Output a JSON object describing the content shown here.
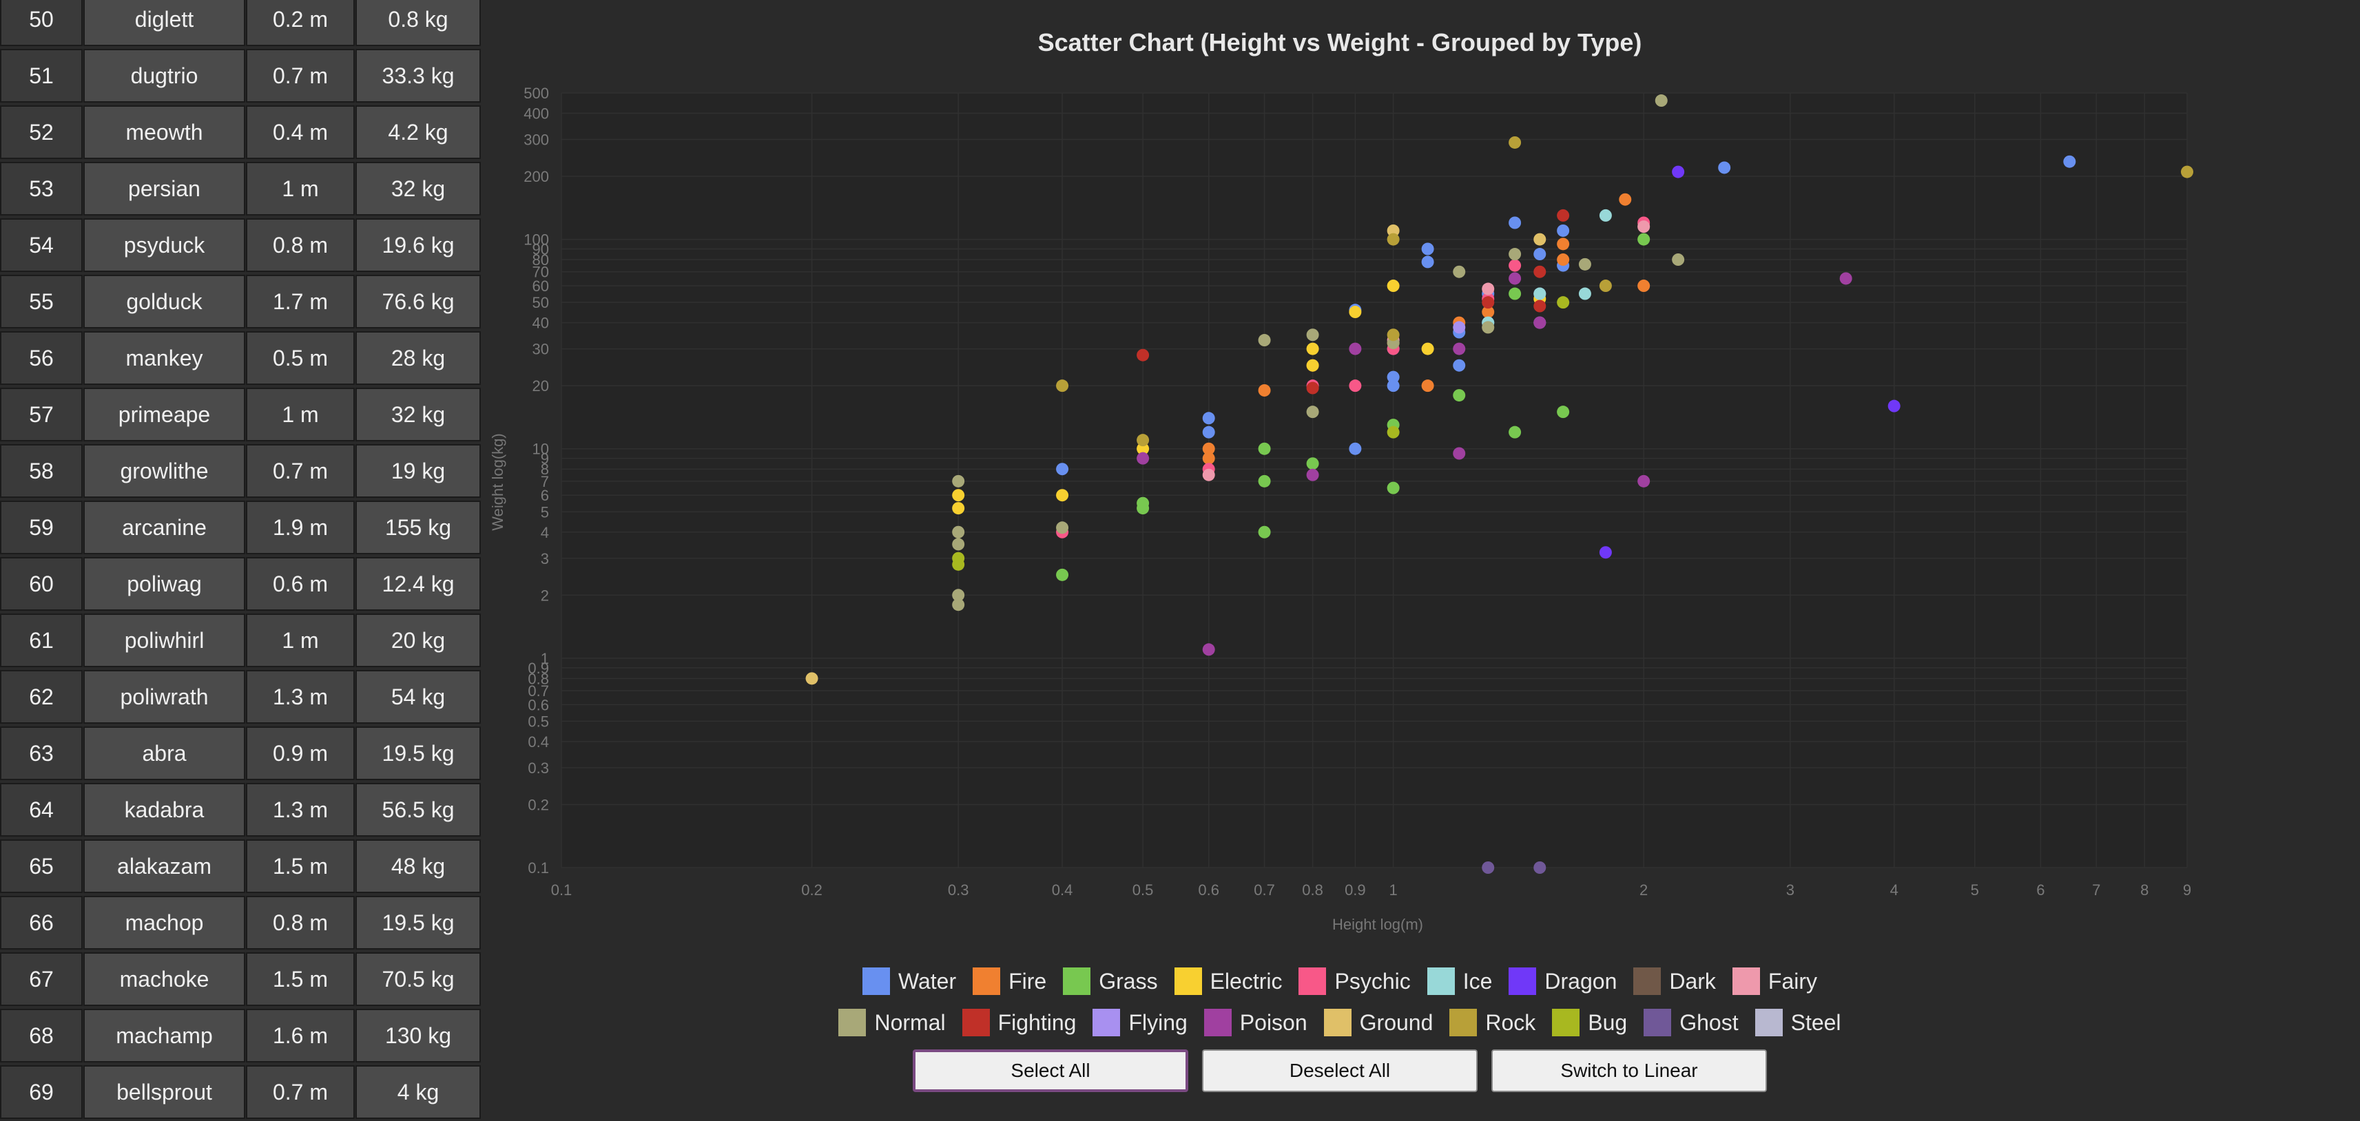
{
  "table": {
    "rows": [
      {
        "id": "50",
        "name": "diglett",
        "height": "0.2 m",
        "weight": "0.8 kg"
      },
      {
        "id": "51",
        "name": "dugtrio",
        "height": "0.7 m",
        "weight": "33.3 kg"
      },
      {
        "id": "52",
        "name": "meowth",
        "height": "0.4 m",
        "weight": "4.2 kg"
      },
      {
        "id": "53",
        "name": "persian",
        "height": "1 m",
        "weight": "32 kg"
      },
      {
        "id": "54",
        "name": "psyduck",
        "height": "0.8 m",
        "weight": "19.6 kg"
      },
      {
        "id": "55",
        "name": "golduck",
        "height": "1.7 m",
        "weight": "76.6 kg"
      },
      {
        "id": "56",
        "name": "mankey",
        "height": "0.5 m",
        "weight": "28 kg"
      },
      {
        "id": "57",
        "name": "primeape",
        "height": "1 m",
        "weight": "32 kg"
      },
      {
        "id": "58",
        "name": "growlithe",
        "height": "0.7 m",
        "weight": "19 kg"
      },
      {
        "id": "59",
        "name": "arcanine",
        "height": "1.9 m",
        "weight": "155 kg"
      },
      {
        "id": "60",
        "name": "poliwag",
        "height": "0.6 m",
        "weight": "12.4 kg"
      },
      {
        "id": "61",
        "name": "poliwhirl",
        "height": "1 m",
        "weight": "20 kg"
      },
      {
        "id": "62",
        "name": "poliwrath",
        "height": "1.3 m",
        "weight": "54 kg"
      },
      {
        "id": "63",
        "name": "abra",
        "height": "0.9 m",
        "weight": "19.5 kg"
      },
      {
        "id": "64",
        "name": "kadabra",
        "height": "1.3 m",
        "weight": "56.5 kg"
      },
      {
        "id": "65",
        "name": "alakazam",
        "height": "1.5 m",
        "weight": "48 kg"
      },
      {
        "id": "66",
        "name": "machop",
        "height": "0.8 m",
        "weight": "19.5 kg"
      },
      {
        "id": "67",
        "name": "machoke",
        "height": "1.5 m",
        "weight": "70.5 kg"
      },
      {
        "id": "68",
        "name": "machamp",
        "height": "1.6 m",
        "weight": "130 kg"
      },
      {
        "id": "69",
        "name": "bellsprout",
        "height": "0.7 m",
        "weight": "4 kg"
      }
    ]
  },
  "chart_data": {
    "type": "scatter",
    "title": "Scatter Chart (Height vs Weight - Grouped by Type)",
    "xlabel": "Height log(m)",
    "ylabel": "Weight log(kg)",
    "x_scale": "log",
    "y_scale": "log",
    "xlim": [
      0.1,
      9
    ],
    "ylim": [
      0.1,
      500
    ],
    "x_ticks": [
      "0.1",
      "0.2",
      "0.3",
      "0.4",
      "0.5",
      "0.6",
      "0.7",
      "0.8",
      "0.9",
      "1",
      "2",
      "3",
      "4",
      "5",
      "6",
      "7",
      "8",
      "9"
    ],
    "y_ticks": [
      "0.1",
      "0.2",
      "0.3",
      "0.4",
      "0.5",
      "0.6",
      "0.7",
      "0.8",
      "0.9",
      "1",
      "2",
      "3",
      "4",
      "5",
      "6",
      "7",
      "8",
      "9",
      "10",
      "20",
      "30",
      "40",
      "50",
      "60",
      "70",
      "80",
      "90",
      "100",
      "200",
      "300",
      "400",
      "500"
    ],
    "grid": true,
    "legend_position": "bottom",
    "series": [
      {
        "name": "Water",
        "color": "#6890F0",
        "points": [
          [
            0.6,
            14
          ],
          [
            0.6,
            12
          ],
          [
            0.4,
            8
          ],
          [
            0.9,
            46
          ],
          [
            0.9,
            10
          ],
          [
            1,
            30
          ],
          [
            1,
            22
          ],
          [
            1,
            20
          ],
          [
            1.1,
            90
          ],
          [
            1.1,
            78
          ],
          [
            1.2,
            36
          ],
          [
            1.2,
            25
          ],
          [
            1.3,
            55
          ],
          [
            1.3,
            40
          ],
          [
            1.4,
            120
          ],
          [
            1.5,
            85
          ],
          [
            1.5,
            55
          ],
          [
            1.6,
            110
          ],
          [
            1.6,
            75
          ],
          [
            2.5,
            220
          ],
          [
            6.5,
            235
          ]
        ]
      },
      {
        "name": "Fire",
        "color": "#F08030",
        "points": [
          [
            0.6,
            9
          ],
          [
            0.6,
            10
          ],
          [
            0.7,
            19
          ],
          [
            0.8,
            25
          ],
          [
            1,
            32
          ],
          [
            1.1,
            20
          ],
          [
            1.2,
            40
          ],
          [
            1.3,
            45
          ],
          [
            1.6,
            80
          ],
          [
            1.6,
            95
          ],
          [
            1.9,
            155
          ],
          [
            2,
            60
          ]
        ]
      },
      {
        "name": "Grass",
        "color": "#78C850",
        "points": [
          [
            0.4,
            2.5
          ],
          [
            0.5,
            5.5
          ],
          [
            0.5,
            5.2
          ],
          [
            0.7,
            7
          ],
          [
            0.7,
            10
          ],
          [
            0.7,
            4
          ],
          [
            0.8,
            8.5
          ],
          [
            1,
            6.5
          ],
          [
            1,
            13
          ],
          [
            1.2,
            18
          ],
          [
            1.4,
            12
          ],
          [
            1.4,
            55
          ],
          [
            1.6,
            15
          ],
          [
            2,
            100
          ]
        ]
      },
      {
        "name": "Electric",
        "color": "#F8D030",
        "points": [
          [
            0.3,
            6
          ],
          [
            0.3,
            5.2
          ],
          [
            0.4,
            6
          ],
          [
            0.5,
            10
          ],
          [
            0.8,
            30
          ],
          [
            0.8,
            25
          ],
          [
            0.9,
            45
          ],
          [
            1,
            60
          ],
          [
            1.1,
            30
          ],
          [
            1.5,
            52
          ]
        ]
      },
      {
        "name": "Psychic",
        "color": "#F85888",
        "points": [
          [
            0.4,
            4
          ],
          [
            0.6,
            8
          ],
          [
            0.8,
            20
          ],
          [
            0.9,
            20
          ],
          [
            1,
            30
          ],
          [
            1.3,
            52
          ],
          [
            1.4,
            75
          ],
          [
            2,
            120
          ]
        ]
      },
      {
        "name": "Ice",
        "color": "#98D8D8",
        "points": [
          [
            1.3,
            40
          ],
          [
            1.5,
            55
          ],
          [
            1.7,
            55
          ],
          [
            1.8,
            130
          ]
        ]
      },
      {
        "name": "Dragon",
        "color": "#7038F8",
        "points": [
          [
            1.8,
            3.2
          ],
          [
            2.2,
            210
          ],
          [
            4,
            16
          ]
        ]
      },
      {
        "name": "Dark",
        "color": "#705848",
        "points": [
          [
            1.3,
            38
          ]
        ]
      },
      {
        "name": "Fairy",
        "color": "#EE99AC",
        "points": [
          [
            0.6,
            7.5
          ],
          [
            1,
            33
          ],
          [
            1.3,
            58
          ],
          [
            2,
            115
          ]
        ]
      },
      {
        "name": "Normal",
        "color": "#A8A878",
        "points": [
          [
            0.3,
            7
          ],
          [
            0.3,
            4
          ],
          [
            0.3,
            3.5
          ],
          [
            0.3,
            2
          ],
          [
            0.3,
            1.8
          ],
          [
            0.4,
            4.2
          ],
          [
            0.7,
            33
          ],
          [
            0.8,
            35
          ],
          [
            0.8,
            15
          ],
          [
            1,
            32
          ],
          [
            1.2,
            70
          ],
          [
            1.3,
            38
          ],
          [
            1.4,
            85
          ],
          [
            1.7,
            76
          ],
          [
            2.2,
            80
          ],
          [
            2.1,
            460
          ]
        ]
      },
      {
        "name": "Fighting",
        "color": "#C03028",
        "points": [
          [
            0.5,
            28
          ],
          [
            0.8,
            19.5
          ],
          [
            1.3,
            50
          ],
          [
            1.5,
            48
          ],
          [
            1.5,
            70
          ],
          [
            1.6,
            130
          ]
        ]
      },
      {
        "name": "Flying",
        "color": "#A890F0",
        "points": [
          [
            1.2,
            38
          ],
          [
            1.5,
            40
          ]
        ]
      },
      {
        "name": "Poison",
        "color": "#A040A0",
        "points": [
          [
            0.5,
            9
          ],
          [
            0.6,
            1.1
          ],
          [
            0.8,
            7.5
          ],
          [
            0.9,
            30
          ],
          [
            1.2,
            30
          ],
          [
            1.2,
            9.5
          ],
          [
            1.4,
            65
          ],
          [
            1.5,
            40
          ],
          [
            2,
            7
          ],
          [
            3.5,
            65
          ]
        ]
      },
      {
        "name": "Ground",
        "color": "#E0C068",
        "points": [
          [
            0.2,
            0.8
          ],
          [
            1,
            110
          ],
          [
            1.5,
            100
          ]
        ]
      },
      {
        "name": "Rock",
        "color": "#B8A038",
        "points": [
          [
            0.4,
            20
          ],
          [
            0.5,
            11
          ],
          [
            1,
            100
          ],
          [
            1,
            35
          ],
          [
            1.4,
            290
          ],
          [
            1.8,
            60
          ],
          [
            9,
            210
          ]
        ]
      },
      {
        "name": "Bug",
        "color": "#A8B820",
        "points": [
          [
            0.3,
            3
          ],
          [
            0.3,
            2.8
          ],
          [
            1,
            12
          ],
          [
            1.6,
            50
          ]
        ]
      },
      {
        "name": "Ghost",
        "color": "#705898",
        "points": [
          [
            1.3,
            0.1
          ],
          [
            1.5,
            0.1
          ]
        ]
      },
      {
        "name": "Steel",
        "color": "#B8B8D0",
        "points": []
      }
    ]
  },
  "legend_rows": [
    [
      {
        "name": "Water",
        "color": "#6890F0"
      },
      {
        "name": "Fire",
        "color": "#F08030"
      },
      {
        "name": "Grass",
        "color": "#78C850"
      },
      {
        "name": "Electric",
        "color": "#F8D030"
      },
      {
        "name": "Psychic",
        "color": "#F85888"
      },
      {
        "name": "Ice",
        "color": "#98D8D8"
      },
      {
        "name": "Dragon",
        "color": "#7038F8"
      },
      {
        "name": "Dark",
        "color": "#705848"
      },
      {
        "name": "Fairy",
        "color": "#EE99AC"
      }
    ],
    [
      {
        "name": "Normal",
        "color": "#A8A878"
      },
      {
        "name": "Fighting",
        "color": "#C03028"
      },
      {
        "name": "Flying",
        "color": "#A890F0"
      },
      {
        "name": "Poison",
        "color": "#A040A0"
      },
      {
        "name": "Ground",
        "color": "#E0C068"
      },
      {
        "name": "Rock",
        "color": "#B8A038"
      },
      {
        "name": "Bug",
        "color": "#A8B820"
      },
      {
        "name": "Ghost",
        "color": "#705898"
      },
      {
        "name": "Steel",
        "color": "#B8B8D0"
      }
    ]
  ],
  "buttons": {
    "select_all": "Select All",
    "deselect_all": "Deselect All",
    "switch_scale": "Switch to Linear"
  }
}
